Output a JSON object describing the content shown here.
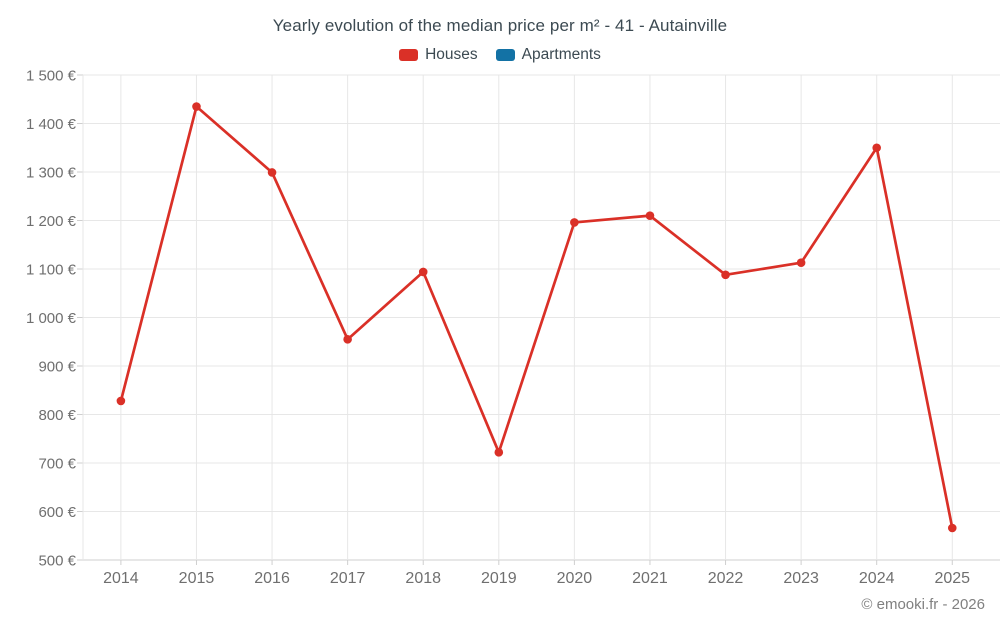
{
  "title": "Yearly evolution of the median price per m² - 41 - Autainville",
  "footer": "© emooki.fr - 2026",
  "colors": {
    "houses": "#da3027",
    "apartments": "#1372a5",
    "title_text": "#3c4a52",
    "axis_text": "#6f6f6f",
    "grid": "#e7e7e7",
    "axis_line": "#cfcfcf",
    "footer_text": "#808080"
  },
  "chart_data": {
    "type": "line",
    "title": "Yearly evolution of the median price per m² - 41 - Autainville",
    "categories": [
      "2014",
      "2015",
      "2016",
      "2017",
      "2018",
      "2019",
      "2020",
      "2021",
      "2022",
      "2023",
      "2024",
      "2025"
    ],
    "series": [
      {
        "name": "Houses",
        "color": "#da3027",
        "values": [
          828,
          1435,
          1299,
          955,
          1094,
          722,
          1196,
          1210,
          1088,
          1113,
          1350,
          566
        ]
      },
      {
        "name": "Apartments",
        "color": "#1372a5",
        "values": []
      }
    ],
    "xlabel": "",
    "ylabel": "",
    "ylim": [
      500,
      1500
    ],
    "y_tick_step": 100,
    "y_ticks": [
      1500,
      1400,
      1300,
      1200,
      1100,
      1000,
      900,
      800,
      700,
      600,
      500
    ],
    "y_tick_labels": [
      "1 500 €",
      "1 400 €",
      "1 300 €",
      "1 200 €",
      "1 100 €",
      "1 000 €",
      "900 €",
      "800 €",
      "700 €",
      "600 €",
      "500 €"
    ],
    "grid": true,
    "legend_position": "top",
    "currency": "€"
  }
}
